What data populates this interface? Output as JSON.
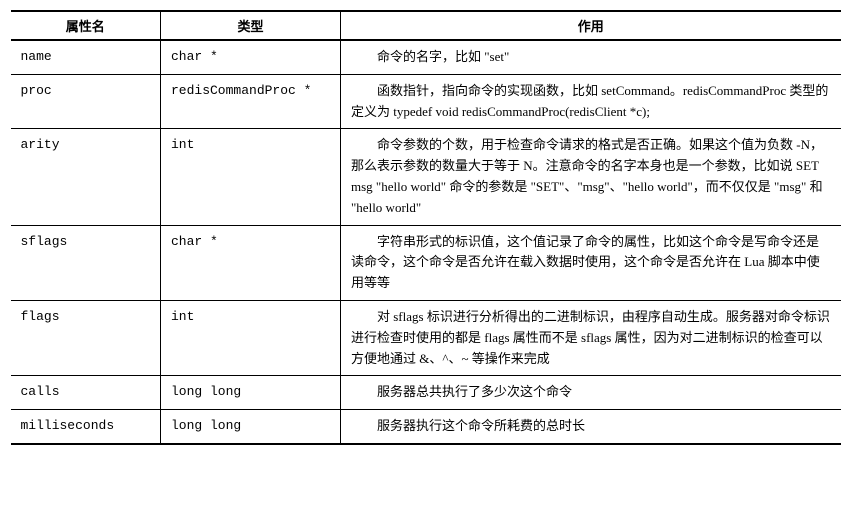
{
  "table": {
    "headers": {
      "col1": "属性名",
      "col2": "类型",
      "col3": "作用"
    },
    "rows": [
      {
        "name": "name",
        "type": "char *",
        "desc": "命令的名字，比如 \"set\""
      },
      {
        "name": "proc",
        "type": "redisCommandProc *",
        "desc": "函数指针，指向命令的实现函数，比如 setCommand。redisCommandProc 类型的定义为 typedef void redisCommandProc(redisClient *c);"
      },
      {
        "name": "arity",
        "type": "int",
        "desc": "命令参数的个数，用于检查命令请求的格式是否正确。如果这个值为负数 -N，那么表示参数的数量大于等于 N。注意命令的名字本身也是一个参数，比如说 SET msg \"hello world\" 命令的参数是 \"SET\"、\"msg\"、\"hello world\"，而不仅仅是 \"msg\" 和 \"hello world\""
      },
      {
        "name": "sflags",
        "type": "char *",
        "desc": "字符串形式的标识值，这个值记录了命令的属性，比如这个命令是写命令还是读命令，这个命令是否允许在载入数据时使用，这个命令是否允许在 Lua 脚本中使用等等"
      },
      {
        "name": "flags",
        "type": "int",
        "desc": "对 sflags 标识进行分析得出的二进制标识，由程序自动生成。服务器对命令标识进行检查时使用的都是 flags 属性而不是 sflags 属性，因为对二进制标识的检查可以方便地通过 &、^、~ 等操作来完成"
      },
      {
        "name": "calls",
        "type": "long long",
        "desc": "服务器总共执行了多少次这个命令"
      },
      {
        "name": "milliseconds",
        "type": "long long",
        "desc": "服务器执行这个命令所耗费的总时长"
      }
    ],
    "column_widths": {
      "col1": 150,
      "col2": 180
    },
    "styling": {
      "border_color": "#000000",
      "background_color": "#ffffff",
      "font_family_cjk": "SimSun",
      "font_family_mono": "Courier New",
      "font_size": 13,
      "outer_border_width": 2,
      "inner_border_width": 1,
      "text_indent_desc": "2em",
      "line_height": 1.6
    }
  }
}
